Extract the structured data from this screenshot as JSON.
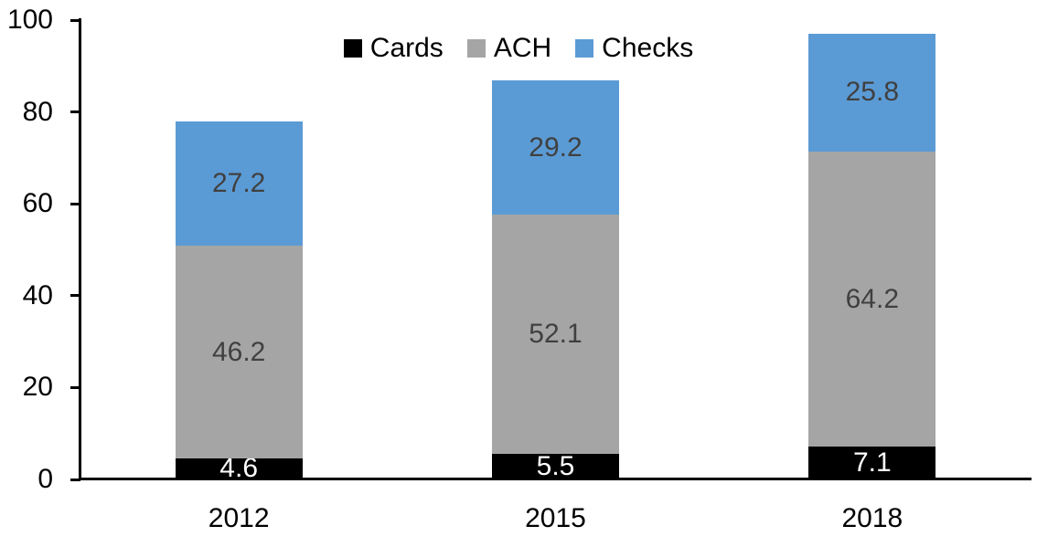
{
  "chart_data": {
    "type": "bar",
    "stacked": true,
    "title": "",
    "categories": [
      "2012",
      "2015",
      "2018"
    ],
    "series": [
      {
        "name": "Cards",
        "color": "#000000",
        "label_color": "#FFFFFF",
        "values": [
          4.6,
          5.5,
          7.1
        ]
      },
      {
        "name": "ACH",
        "color": "#A5A5A5",
        "label_color": "#404040",
        "values": [
          46.2,
          52.1,
          64.2
        ]
      },
      {
        "name": "Checks",
        "color": "#5B9BD5",
        "label_color": "#404040",
        "values": [
          27.2,
          29.2,
          25.8
        ]
      }
    ],
    "xlabel": "",
    "ylabel": "",
    "ylim": [
      0,
      100
    ],
    "yticks": [
      0,
      20,
      40,
      60,
      80,
      100
    ],
    "legend": {
      "position": "top",
      "entries": [
        "Cards",
        "ACH",
        "Checks"
      ]
    },
    "grid": false,
    "value_decimals": 1,
    "colors": {
      "axis": "#000000",
      "background": "#FFFFFF"
    }
  }
}
